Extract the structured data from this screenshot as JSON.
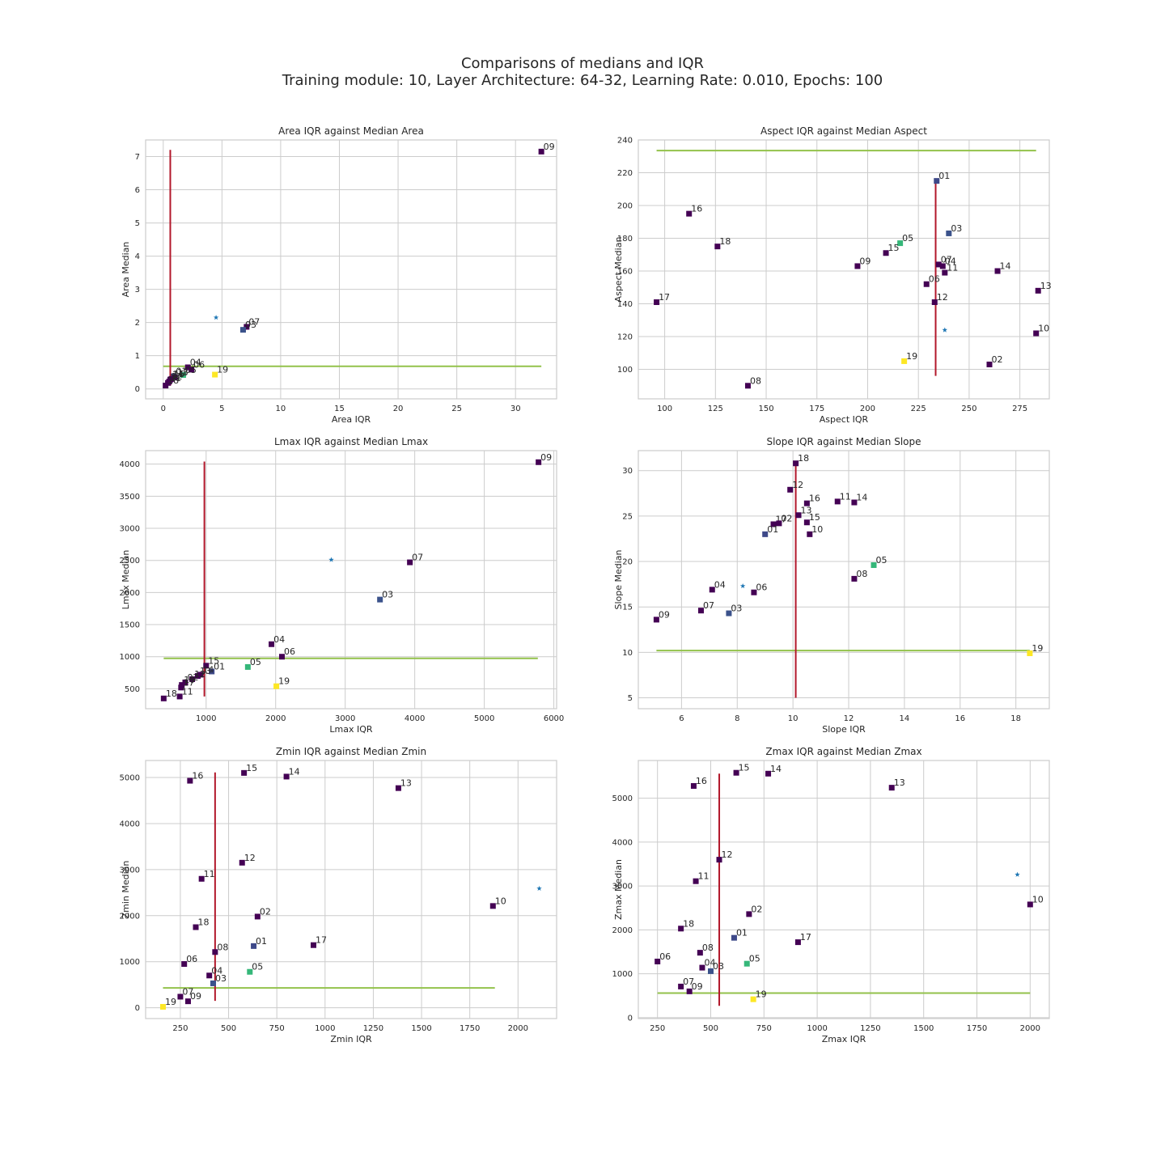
{
  "figure": {
    "title_line1": "Comparisons of medians and IQR",
    "title_line2": "Training module: 10, Layer Architecture: 64-32, Learning Rate: 0.010, Epochs: 100"
  },
  "colors": {
    "median_line": "#b2182b",
    "iqr_line": "#93c24b",
    "star": "#1f77b4",
    "grid": "#cccccc",
    "frame": "#cccccc"
  },
  "chart_data": [
    {
      "type": "scatter",
      "title": "Area IQR against Median Area",
      "xlabel": "Area IQR",
      "ylabel": "Area Median",
      "xlim": [
        -1.5,
        33.5
      ],
      "ylim": [
        -0.3,
        7.5
      ],
      "xticks": [
        0,
        5,
        10,
        15,
        20,
        25,
        30
      ],
      "yticks": [
        0,
        1,
        2,
        3,
        4,
        5,
        6,
        7
      ],
      "vline": {
        "x": 0.6,
        "y": [
          0.1,
          7.2
        ]
      },
      "hline": {
        "y": 0.68,
        "x": [
          0,
          32.2
        ]
      },
      "star": {
        "x": 4.5,
        "y": 2.15
      },
      "points": [
        {
          "label": "09",
          "x": 32.2,
          "y": 7.15,
          "color": "#440154"
        },
        {
          "label": "07",
          "x": 7.1,
          "y": 1.87,
          "color": "#440154"
        },
        {
          "label": "03",
          "x": 6.8,
          "y": 1.78,
          "color": "#3b528b"
        },
        {
          "label": "04",
          "x": 2.1,
          "y": 0.65,
          "color": "#440154"
        },
        {
          "label": "06",
          "x": 2.4,
          "y": 0.58,
          "color": "#440154"
        },
        {
          "label": "05",
          "x": 1.7,
          "y": 0.42,
          "color": "#35b779"
        },
        {
          "label": "19",
          "x": 4.4,
          "y": 0.43,
          "color": "#fde725"
        },
        {
          "label": "01",
          "x": 0.9,
          "y": 0.38,
          "color": "#3e4989"
        },
        {
          "label": "13",
          "x": 1.0,
          "y": 0.35,
          "color": "#440154"
        },
        {
          "label": "15",
          "x": 0.7,
          "y": 0.3,
          "color": "#440154"
        },
        {
          "label": "14",
          "x": 0.6,
          "y": 0.28,
          "color": "#440154"
        },
        {
          "label": "12",
          "x": 0.5,
          "y": 0.22,
          "color": "#440154"
        },
        {
          "label": "11",
          "x": 0.4,
          "y": 0.18,
          "color": "#440154"
        },
        {
          "label": "18",
          "x": 0.2,
          "y": 0.1,
          "color": "#440154"
        }
      ]
    },
    {
      "type": "scatter",
      "title": "Aspect IQR against Median Aspect",
      "xlabel": "Aspect IQR",
      "ylabel": "Aspect Median",
      "xlim": [
        87,
        289.5
      ],
      "ylim": [
        82,
        240
      ],
      "xticks": [
        100,
        125,
        150,
        175,
        200,
        225,
        250,
        275
      ],
      "yticks": [
        100,
        120,
        140,
        160,
        180,
        200,
        220,
        240
      ],
      "vline": {
        "x": 233.5,
        "y": [
          96,
          215
        ]
      },
      "hline": {
        "y": 233.5,
        "x": [
          96,
          283
        ]
      },
      "star": {
        "x": 238,
        "y": 124
      },
      "points": [
        {
          "label": "01",
          "x": 234,
          "y": 215,
          "color": "#3e4989"
        },
        {
          "label": "16",
          "x": 112,
          "y": 195,
          "color": "#440154"
        },
        {
          "label": "03",
          "x": 240,
          "y": 183,
          "color": "#3b528b"
        },
        {
          "label": "05",
          "x": 216,
          "y": 177,
          "color": "#35b779"
        },
        {
          "label": "18",
          "x": 126,
          "y": 175,
          "color": "#440154"
        },
        {
          "label": "15",
          "x": 209,
          "y": 171,
          "color": "#440154"
        },
        {
          "label": "07",
          "x": 235,
          "y": 164,
          "color": "#440154"
        },
        {
          "label": "04",
          "x": 237,
          "y": 163,
          "color": "#440154"
        },
        {
          "label": "09",
          "x": 195,
          "y": 163,
          "color": "#440154"
        },
        {
          "label": "11",
          "x": 238,
          "y": 159,
          "color": "#440154"
        },
        {
          "label": "14",
          "x": 264,
          "y": 160,
          "color": "#440154"
        },
        {
          "label": "06",
          "x": 229,
          "y": 152,
          "color": "#440154"
        },
        {
          "label": "13",
          "x": 284,
          "y": 148,
          "color": "#440154"
        },
        {
          "label": "12",
          "x": 233,
          "y": 141,
          "color": "#440154"
        },
        {
          "label": "17",
          "x": 96,
          "y": 141,
          "color": "#440154"
        },
        {
          "label": "10",
          "x": 283,
          "y": 122,
          "color": "#440154"
        },
        {
          "label": "19",
          "x": 218,
          "y": 105,
          "color": "#fde725"
        },
        {
          "label": "02",
          "x": 260,
          "y": 103,
          "color": "#440154"
        },
        {
          "label": "08",
          "x": 141,
          "y": 90,
          "color": "#440154"
        }
      ]
    },
    {
      "type": "scatter",
      "title": "Lmax IQR against Median Lmax",
      "xlabel": "Lmax IQR",
      "ylabel": "Lmax Median",
      "xlim": [
        130,
        6040
      ],
      "ylim": [
        190,
        4210
      ],
      "xticks": [
        1000,
        2000,
        3000,
        4000,
        5000,
        6000
      ],
      "yticks": [
        500,
        1000,
        1500,
        2000,
        2500,
        3000,
        3500,
        4000
      ],
      "vline": {
        "x": 975,
        "y": [
          380,
          4040
        ]
      },
      "hline": {
        "y": 975,
        "x": [
          390,
          5770
        ]
      },
      "star": {
        "x": 2800,
        "y": 2510
      },
      "points": [
        {
          "label": "09",
          "x": 5780,
          "y": 4030,
          "color": "#440154"
        },
        {
          "label": "07",
          "x": 3930,
          "y": 2470,
          "color": "#440154"
        },
        {
          "label": "03",
          "x": 3500,
          "y": 1890,
          "color": "#3b528b"
        },
        {
          "label": "04",
          "x": 1940,
          "y": 1195,
          "color": "#440154"
        },
        {
          "label": "06",
          "x": 2090,
          "y": 1000,
          "color": "#440154"
        },
        {
          "label": "05",
          "x": 1600,
          "y": 840,
          "color": "#35b779"
        },
        {
          "label": "15",
          "x": 1000,
          "y": 860,
          "color": "#440154"
        },
        {
          "label": "01",
          "x": 1080,
          "y": 770,
          "color": "#3e4989"
        },
        {
          "label": "14",
          "x": 920,
          "y": 720,
          "color": "#440154"
        },
        {
          "label": "13",
          "x": 880,
          "y": 700,
          "color": "#440154"
        },
        {
          "label": "12",
          "x": 800,
          "y": 650,
          "color": "#440154"
        },
        {
          "label": "02",
          "x": 700,
          "y": 600,
          "color": "#440154"
        },
        {
          "label": "10",
          "x": 650,
          "y": 560,
          "color": "#440154"
        },
        {
          "label": "19",
          "x": 2010,
          "y": 540,
          "color": "#fde725"
        },
        {
          "label": "17",
          "x": 640,
          "y": 520,
          "color": "#440154"
        },
        {
          "label": "11",
          "x": 620,
          "y": 380,
          "color": "#440154"
        },
        {
          "label": "18",
          "x": 390,
          "y": 350,
          "color": "#440154"
        }
      ]
    },
    {
      "type": "scatter",
      "title": "Slope IQR against Median Slope",
      "xlabel": "Slope IQR",
      "ylabel": "Slope Median",
      "xlim": [
        4.45,
        19.2
      ],
      "ylim": [
        3.8,
        32.2
      ],
      "xticks": [
        6,
        8,
        10,
        12,
        14,
        16,
        18
      ],
      "yticks": [
        5,
        10,
        15,
        20,
        25,
        30
      ],
      "vline": {
        "x": 10.1,
        "y": [
          5,
          31
        ]
      },
      "hline": {
        "y": 10.2,
        "x": [
          5.1,
          18.5
        ]
      },
      "star": {
        "x": 8.2,
        "y": 17.3
      },
      "points": [
        {
          "label": "18",
          "x": 10.1,
          "y": 30.8,
          "color": "#440154"
        },
        {
          "label": "12",
          "x": 9.9,
          "y": 27.9,
          "color": "#440154"
        },
        {
          "label": "11",
          "x": 11.6,
          "y": 26.6,
          "color": "#440154"
        },
        {
          "label": "14",
          "x": 12.2,
          "y": 26.5,
          "color": "#440154"
        },
        {
          "label": "16",
          "x": 10.5,
          "y": 26.4,
          "color": "#440154"
        },
        {
          "label": "13",
          "x": 10.2,
          "y": 25.1,
          "color": "#440154"
        },
        {
          "label": "15",
          "x": 10.5,
          "y": 24.3,
          "color": "#440154"
        },
        {
          "label": "17",
          "x": 9.3,
          "y": 24.1,
          "color": "#440154"
        },
        {
          "label": "02",
          "x": 9.5,
          "y": 24.2,
          "color": "#440154"
        },
        {
          "label": "01",
          "x": 9.0,
          "y": 23.0,
          "color": "#3e4989"
        },
        {
          "label": "10",
          "x": 10.6,
          "y": 23.0,
          "color": "#440154"
        },
        {
          "label": "05",
          "x": 12.9,
          "y": 19.6,
          "color": "#35b779"
        },
        {
          "label": "08",
          "x": 12.2,
          "y": 18.1,
          "color": "#440154"
        },
        {
          "label": "04",
          "x": 7.1,
          "y": 16.9,
          "color": "#440154"
        },
        {
          "label": "06",
          "x": 8.6,
          "y": 16.6,
          "color": "#440154"
        },
        {
          "label": "07",
          "x": 6.7,
          "y": 14.6,
          "color": "#440154"
        },
        {
          "label": "03",
          "x": 7.7,
          "y": 14.3,
          "color": "#3b528b"
        },
        {
          "label": "09",
          "x": 5.1,
          "y": 13.6,
          "color": "#440154"
        },
        {
          "label": "19",
          "x": 18.5,
          "y": 9.9,
          "color": "#fde725"
        }
      ]
    },
    {
      "type": "scatter",
      "title": "Zmin IQR against Median Zmin",
      "xlabel": "Zmin IQR",
      "ylabel": "Zmin Median",
      "xlim": [
        70,
        2200
      ],
      "ylim": [
        -235,
        5370
      ],
      "xticks": [
        250,
        500,
        750,
        1000,
        1250,
        1500,
        1750,
        2000
      ],
      "yticks": [
        0,
        1000,
        2000,
        3000,
        4000,
        5000
      ],
      "vline": {
        "x": 430,
        "y": [
          150,
          5110
        ]
      },
      "hline": {
        "y": 430,
        "x": [
          160,
          1880
        ]
      },
      "star": {
        "x": 2110,
        "y": 2590
      },
      "points": [
        {
          "label": "15",
          "x": 580,
          "y": 5100,
          "color": "#440154"
        },
        {
          "label": "14",
          "x": 800,
          "y": 5020,
          "color": "#440154"
        },
        {
          "label": "16",
          "x": 300,
          "y": 4930,
          "color": "#440154"
        },
        {
          "label": "13",
          "x": 1380,
          "y": 4770,
          "color": "#440154"
        },
        {
          "label": "12",
          "x": 570,
          "y": 3150,
          "color": "#440154"
        },
        {
          "label": "11",
          "x": 360,
          "y": 2800,
          "color": "#440154"
        },
        {
          "label": "10",
          "x": 1870,
          "y": 2210,
          "color": "#440154"
        },
        {
          "label": "02",
          "x": 650,
          "y": 1980,
          "color": "#440154"
        },
        {
          "label": "18",
          "x": 330,
          "y": 1750,
          "color": "#440154"
        },
        {
          "label": "01",
          "x": 630,
          "y": 1340,
          "color": "#3e4989"
        },
        {
          "label": "17",
          "x": 940,
          "y": 1360,
          "color": "#440154"
        },
        {
          "label": "08",
          "x": 430,
          "y": 1210,
          "color": "#440154"
        },
        {
          "label": "06",
          "x": 270,
          "y": 950,
          "color": "#440154"
        },
        {
          "label": "05",
          "x": 610,
          "y": 780,
          "color": "#35b779"
        },
        {
          "label": "04",
          "x": 400,
          "y": 700,
          "color": "#440154"
        },
        {
          "label": "03",
          "x": 420,
          "y": 530,
          "color": "#3b528b"
        },
        {
          "label": "07",
          "x": 250,
          "y": 240,
          "color": "#440154"
        },
        {
          "label": "09",
          "x": 290,
          "y": 140,
          "color": "#440154"
        },
        {
          "label": "19",
          "x": 160,
          "y": 20,
          "color": "#fde725"
        }
      ]
    },
    {
      "type": "scatter",
      "title": "Zmax IQR against Median Zmax",
      "xlabel": "Zmax IQR",
      "ylabel": "Zmax Median",
      "xlim": [
        160,
        2090
      ],
      "ylim": [
        -20,
        5860
      ],
      "xticks": [
        250,
        500,
        750,
        1000,
        1250,
        1500,
        1750,
        2000
      ],
      "yticks": [
        0,
        1000,
        2000,
        3000,
        4000,
        5000
      ],
      "vline": {
        "x": 540,
        "y": [
          270,
          5560
        ]
      },
      "hline": {
        "y": 560,
        "x": [
          250,
          2000
        ]
      },
      "star": {
        "x": 1940,
        "y": 3260
      },
      "points": [
        {
          "label": "15",
          "x": 620,
          "y": 5580,
          "color": "#440154"
        },
        {
          "label": "14",
          "x": 770,
          "y": 5560,
          "color": "#440154"
        },
        {
          "label": "16",
          "x": 420,
          "y": 5280,
          "color": "#440154"
        },
        {
          "label": "13",
          "x": 1350,
          "y": 5240,
          "color": "#440154"
        },
        {
          "label": "12",
          "x": 540,
          "y": 3600,
          "color": "#440154"
        },
        {
          "label": "11",
          "x": 430,
          "y": 3110,
          "color": "#440154"
        },
        {
          "label": "10",
          "x": 2000,
          "y": 2580,
          "color": "#440154"
        },
        {
          "label": "02",
          "x": 680,
          "y": 2360,
          "color": "#440154"
        },
        {
          "label": "18",
          "x": 360,
          "y": 2030,
          "color": "#440154"
        },
        {
          "label": "01",
          "x": 610,
          "y": 1820,
          "color": "#3e4989"
        },
        {
          "label": "17",
          "x": 910,
          "y": 1720,
          "color": "#440154"
        },
        {
          "label": "08",
          "x": 450,
          "y": 1480,
          "color": "#440154"
        },
        {
          "label": "06",
          "x": 250,
          "y": 1280,
          "color": "#440154"
        },
        {
          "label": "05",
          "x": 670,
          "y": 1230,
          "color": "#35b779"
        },
        {
          "label": "04",
          "x": 460,
          "y": 1140,
          "color": "#440154"
        },
        {
          "label": "03",
          "x": 500,
          "y": 1060,
          "color": "#3b528b"
        },
        {
          "label": "07",
          "x": 360,
          "y": 710,
          "color": "#440154"
        },
        {
          "label": "09",
          "x": 400,
          "y": 600,
          "color": "#440154"
        },
        {
          "label": "19",
          "x": 700,
          "y": 420,
          "color": "#fde725"
        }
      ]
    }
  ]
}
